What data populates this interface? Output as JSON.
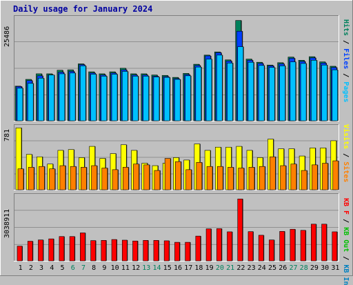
{
  "title": "Daily usage for January 2024",
  "colors": {
    "pages": "#00c0ff",
    "files": "#0040ff",
    "hits": "#00805c",
    "visits": "#ffff00",
    "sites": "#ff8000",
    "kbin": "#0080c0",
    "kbout": "#00c000",
    "kbf": "#ff0000",
    "weekday": "#000000",
    "weekend": "#00805c"
  },
  "chart_data": [
    {
      "type": "bar",
      "ymax_label": "25486",
      "ymax": 25486,
      "legend": [
        {
          "text": "Hits",
          "color": "#00805c"
        },
        {
          "text": "Files",
          "color": "#0040ff"
        },
        {
          "text": "Pages",
          "color": "#00c0ff"
        }
      ],
      "categories": [
        "1",
        "2",
        "3",
        "4",
        "5",
        "6",
        "7",
        "8",
        "9",
        "10",
        "11",
        "12",
        "13",
        "14",
        "15",
        "16",
        "17",
        "18",
        "19",
        "20",
        "21",
        "22",
        "23",
        "24",
        "25",
        "26",
        "27",
        "28",
        "29",
        "30",
        "31"
      ],
      "series": [
        {
          "name": "Hits",
          "values": [
            8700,
            10400,
            11800,
            11800,
            12700,
            12800,
            14300,
            12300,
            11800,
            12300,
            13200,
            11800,
            11800,
            11500,
            11400,
            10900,
            11900,
            14200,
            16500,
            17300,
            15300,
            25200,
            15500,
            14700,
            14000,
            14600,
            16000,
            15200,
            16100,
            14800,
            13700
          ]
        },
        {
          "name": "Files",
          "values": [
            8600,
            10100,
            11300,
            11500,
            12200,
            12400,
            14100,
            12000,
            11500,
            12000,
            12800,
            11500,
            11500,
            11200,
            11100,
            10600,
            11600,
            13900,
            16300,
            17100,
            15000,
            22500,
            15200,
            14400,
            13800,
            14300,
            15700,
            14900,
            15800,
            14500,
            13400
          ]
        },
        {
          "name": "Pages",
          "values": [
            8200,
            9400,
            10700,
            11500,
            11800,
            12000,
            13800,
            11700,
            11200,
            11700,
            12400,
            11200,
            11200,
            11000,
            10900,
            10400,
            11300,
            13500,
            15500,
            16500,
            14500,
            18600,
            14700,
            13900,
            13400,
            13800,
            14800,
            14400,
            15200,
            14000,
            12800
          ]
        }
      ]
    },
    {
      "type": "bar",
      "ymax_label": "781",
      "ymax": 781,
      "legend": [
        {
          "text": "Visits",
          "color": "#ffff00"
        },
        {
          "text": "Sites",
          "color": "#ff8000"
        }
      ],
      "categories": [
        "1",
        "2",
        "3",
        "4",
        "5",
        "6",
        "7",
        "8",
        "9",
        "10",
        "11",
        "12",
        "13",
        "14",
        "15",
        "16",
        "17",
        "18",
        "19",
        "20",
        "21",
        "22",
        "23",
        "24",
        "25",
        "26",
        "27",
        "28",
        "29",
        "30",
        "31"
      ],
      "series": [
        {
          "name": "Visits",
          "values": [
            770,
            440,
            410,
            320,
            490,
            500,
            400,
            540,
            390,
            450,
            560,
            490,
            330,
            300,
            330,
            400,
            370,
            570,
            490,
            530,
            530,
            540,
            490,
            400,
            630,
            510,
            510,
            420,
            520,
            520,
            610
          ]
        },
        {
          "name": "Sites",
          "values": [
            260,
            280,
            290,
            260,
            300,
            290,
            280,
            300,
            270,
            250,
            280,
            320,
            310,
            240,
            390,
            350,
            250,
            340,
            290,
            290,
            280,
            270,
            280,
            290,
            410,
            300,
            320,
            240,
            310,
            330,
            360
          ]
        }
      ]
    },
    {
      "type": "bar",
      "ymax_label": "3038911",
      "ymax": 3038911,
      "legend": [
        {
          "text": "KB F",
          "color": "#ff0000"
        },
        {
          "text": "KB Out",
          "color": "#00c000"
        },
        {
          "text": "KB In",
          "color": "#0080c0"
        }
      ],
      "categories": [
        "1",
        "2",
        "3",
        "4",
        "5",
        "6",
        "7",
        "8",
        "9",
        "10",
        "11",
        "12",
        "13",
        "14",
        "15",
        "16",
        "17",
        "18",
        "19",
        "20",
        "21",
        "22",
        "23",
        "24",
        "25",
        "26",
        "27",
        "28",
        "29",
        "30",
        "31"
      ],
      "series": [
        {
          "name": "KB F",
          "values": [
            690000,
            920000,
            980000,
            1030000,
            1140000,
            1140000,
            1310000,
            950000,
            960000,
            1000000,
            970000,
            930000,
            960000,
            960000,
            940000,
            870000,
            870000,
            1160000,
            1500000,
            1510000,
            1360000,
            2900000,
            1370000,
            1200000,
            980000,
            1380000,
            1480000,
            1430000,
            1720000,
            1720000,
            1360000
          ]
        }
      ]
    }
  ],
  "day_labels": [
    {
      "text": "1",
      "weekend": false
    },
    {
      "text": "2",
      "weekend": false
    },
    {
      "text": "3",
      "weekend": false
    },
    {
      "text": "4",
      "weekend": false
    },
    {
      "text": "5",
      "weekend": false
    },
    {
      "text": "6",
      "weekend": true
    },
    {
      "text": "7",
      "weekend": true
    },
    {
      "text": "8",
      "weekend": false
    },
    {
      "text": "9",
      "weekend": false
    },
    {
      "text": "10",
      "weekend": false
    },
    {
      "text": "11",
      "weekend": false
    },
    {
      "text": "12",
      "weekend": false
    },
    {
      "text": "13",
      "weekend": true
    },
    {
      "text": "14",
      "weekend": true
    },
    {
      "text": "15",
      "weekend": false
    },
    {
      "text": "16",
      "weekend": false
    },
    {
      "text": "17",
      "weekend": false
    },
    {
      "text": "18",
      "weekend": false
    },
    {
      "text": "19",
      "weekend": false
    },
    {
      "text": "20",
      "weekend": true
    },
    {
      "text": "21",
      "weekend": true
    },
    {
      "text": "22",
      "weekend": false
    },
    {
      "text": "23",
      "weekend": false
    },
    {
      "text": "24",
      "weekend": false
    },
    {
      "text": "25",
      "weekend": false
    },
    {
      "text": "26",
      "weekend": false
    },
    {
      "text": "27",
      "weekend": true
    },
    {
      "text": "28",
      "weekend": true
    },
    {
      "text": "29",
      "weekend": false
    },
    {
      "text": "30",
      "weekend": false
    },
    {
      "text": "31",
      "weekend": false
    }
  ]
}
